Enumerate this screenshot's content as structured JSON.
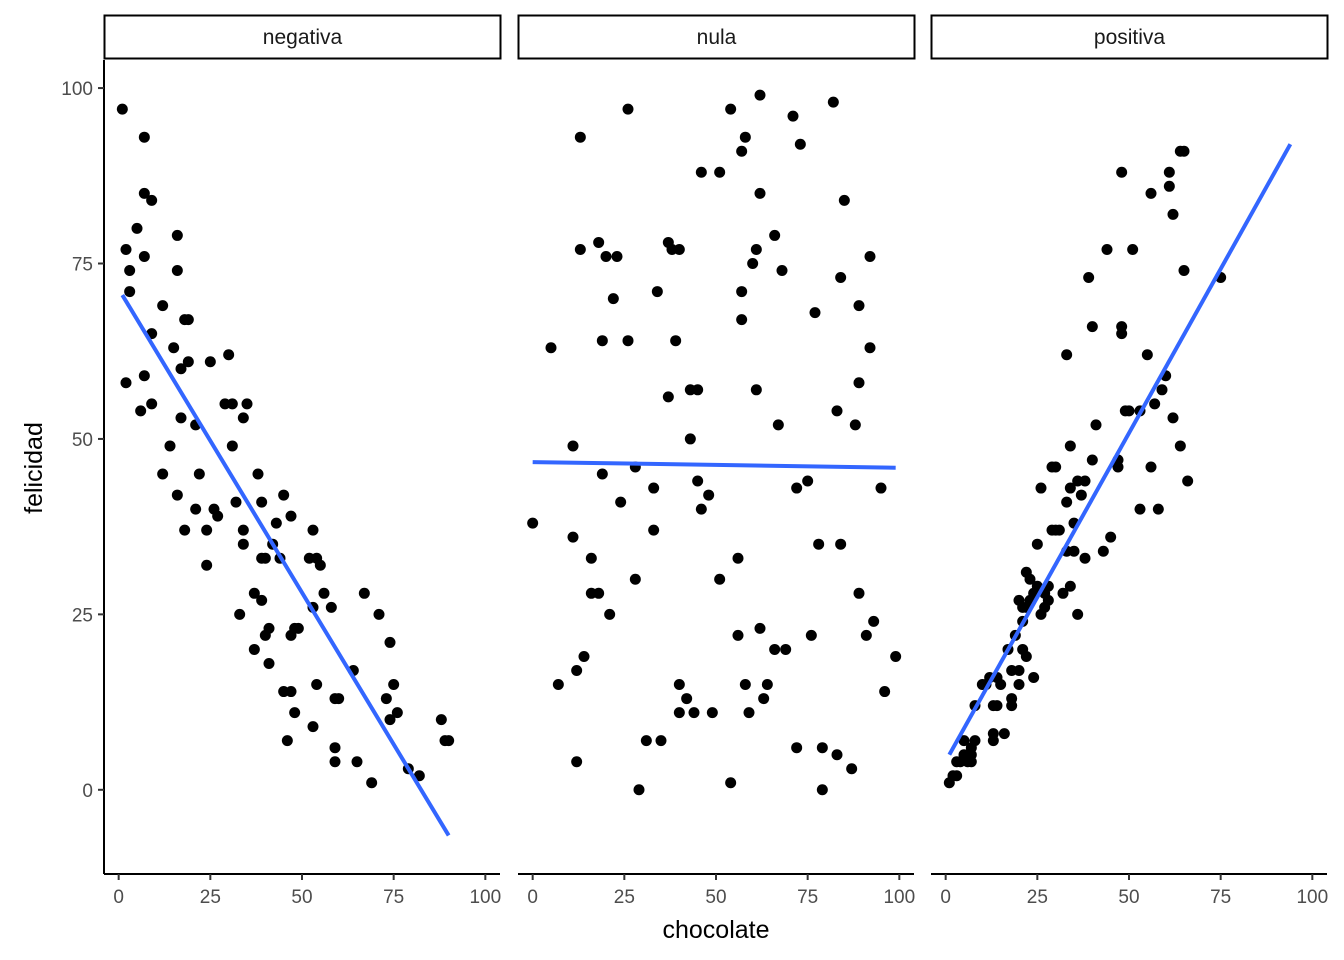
{
  "chart_data": {
    "type": "scatter",
    "xlabel": "chocolate",
    "ylabel": "felicidad",
    "xlim": [
      -4,
      104
    ],
    "ylim": [
      -12,
      104
    ],
    "x_ticks": [
      0,
      25,
      50,
      75,
      100
    ],
    "y_ticks": [
      0,
      25,
      50,
      75,
      100
    ],
    "x_tick_labels": [
      "0",
      "25",
      "50",
      "75",
      "100"
    ],
    "y_tick_labels": [
      "0",
      "25",
      "50",
      "75",
      "100"
    ],
    "grid": false,
    "colors": {
      "point": "#000000",
      "fit_line": "#3366ff",
      "axis": "#000000"
    },
    "panels": [
      {
        "label": "negativa",
        "fit": {
          "x": [
            1,
            90
          ],
          "y": [
            70.5,
            -6.5
          ]
        },
        "points": [
          [
            1,
            97
          ],
          [
            2,
            77
          ],
          [
            2,
            58
          ],
          [
            3,
            71
          ],
          [
            3,
            74
          ],
          [
            5,
            80
          ],
          [
            6,
            54
          ],
          [
            7,
            93
          ],
          [
            7,
            85
          ],
          [
            7,
            76
          ],
          [
            7,
            59
          ],
          [
            9,
            84
          ],
          [
            9,
            65
          ],
          [
            9,
            55
          ],
          [
            12,
            69
          ],
          [
            12,
            45
          ],
          [
            14,
            49
          ],
          [
            15,
            63
          ],
          [
            16,
            79
          ],
          [
            16,
            74
          ],
          [
            16,
            42
          ],
          [
            17,
            60
          ],
          [
            17,
            53
          ],
          [
            18,
            67
          ],
          [
            18,
            37
          ],
          [
            19,
            67
          ],
          [
            19,
            61
          ],
          [
            21,
            52
          ],
          [
            21,
            40
          ],
          [
            22,
            45
          ],
          [
            24,
            37
          ],
          [
            24,
            32
          ],
          [
            25,
            61
          ],
          [
            26,
            40
          ],
          [
            27,
            39
          ],
          [
            29,
            55
          ],
          [
            30,
            62
          ],
          [
            31,
            55
          ],
          [
            31,
            49
          ],
          [
            32,
            41
          ],
          [
            33,
            25
          ],
          [
            34,
            53
          ],
          [
            34,
            37
          ],
          [
            34,
            35
          ],
          [
            35,
            55
          ],
          [
            37,
            28
          ],
          [
            37,
            20
          ],
          [
            38,
            45
          ],
          [
            39,
            41
          ],
          [
            39,
            33
          ],
          [
            39,
            27
          ],
          [
            40,
            33
          ],
          [
            40,
            22
          ],
          [
            41,
            23
          ],
          [
            41,
            18
          ],
          [
            42,
            35
          ],
          [
            43,
            38
          ],
          [
            44,
            33
          ],
          [
            45,
            42
          ],
          [
            45,
            14
          ],
          [
            46,
            7
          ],
          [
            47,
            39
          ],
          [
            47,
            22
          ],
          [
            47,
            14
          ],
          [
            48,
            23
          ],
          [
            48,
            11
          ],
          [
            49,
            23
          ],
          [
            52,
            33
          ],
          [
            53,
            37
          ],
          [
            53,
            9
          ],
          [
            53,
            26
          ],
          [
            54,
            15
          ],
          [
            54,
            33
          ],
          [
            55,
            32
          ],
          [
            56,
            28
          ],
          [
            58,
            26
          ],
          [
            59,
            6
          ],
          [
            59,
            4
          ],
          [
            59,
            13
          ],
          [
            60,
            13
          ],
          [
            64,
            17
          ],
          [
            65,
            4
          ],
          [
            67,
            28
          ],
          [
            69,
            1
          ],
          [
            71,
            25
          ],
          [
            73,
            13
          ],
          [
            74,
            21
          ],
          [
            74,
            10
          ],
          [
            75,
            15
          ],
          [
            76,
            11
          ],
          [
            79,
            3
          ],
          [
            82,
            2
          ],
          [
            88,
            10
          ],
          [
            89,
            7
          ],
          [
            90,
            7
          ]
        ]
      },
      {
        "label": "nula",
        "fit": {
          "x": [
            0,
            99
          ],
          "y": [
            46.7,
            45.9
          ]
        },
        "points": [
          [
            0,
            38
          ],
          [
            5,
            63
          ],
          [
            7,
            15
          ],
          [
            11,
            49
          ],
          [
            11,
            36
          ],
          [
            12,
            17
          ],
          [
            12,
            4
          ],
          [
            13,
            93
          ],
          [
            13,
            77
          ],
          [
            14,
            19
          ],
          [
            16,
            33
          ],
          [
            16,
            28
          ],
          [
            18,
            78
          ],
          [
            18,
            28
          ],
          [
            19,
            64
          ],
          [
            19,
            45
          ],
          [
            20,
            76
          ],
          [
            21,
            25
          ],
          [
            22,
            70
          ],
          [
            23,
            76
          ],
          [
            24,
            41
          ],
          [
            26,
            97
          ],
          [
            26,
            64
          ],
          [
            28,
            46
          ],
          [
            28,
            30
          ],
          [
            29,
            0
          ],
          [
            31,
            7
          ],
          [
            33,
            43
          ],
          [
            33,
            37
          ],
          [
            34,
            71
          ],
          [
            35,
            7
          ],
          [
            37,
            78
          ],
          [
            37,
            56
          ],
          [
            38,
            77
          ],
          [
            39,
            64
          ],
          [
            40,
            77
          ],
          [
            40,
            15
          ],
          [
            40,
            11
          ],
          [
            42,
            13
          ],
          [
            43,
            57
          ],
          [
            43,
            50
          ],
          [
            44,
            11
          ],
          [
            45,
            57
          ],
          [
            45,
            44
          ],
          [
            46,
            88
          ],
          [
            46,
            40
          ],
          [
            48,
            42
          ],
          [
            49,
            11
          ],
          [
            51,
            88
          ],
          [
            51,
            30
          ],
          [
            54,
            97
          ],
          [
            54,
            1
          ],
          [
            56,
            22
          ],
          [
            56,
            33
          ],
          [
            57,
            91
          ],
          [
            57,
            71
          ],
          [
            57,
            67
          ],
          [
            58,
            93
          ],
          [
            58,
            15
          ],
          [
            59,
            11
          ],
          [
            60,
            75
          ],
          [
            61,
            77
          ],
          [
            61,
            57
          ],
          [
            62,
            99
          ],
          [
            62,
            85
          ],
          [
            62,
            23
          ],
          [
            63,
            13
          ],
          [
            64,
            15
          ],
          [
            66,
            79
          ],
          [
            66,
            20
          ],
          [
            67,
            52
          ],
          [
            68,
            74
          ],
          [
            69,
            20
          ],
          [
            71,
            96
          ],
          [
            72,
            6
          ],
          [
            72,
            43
          ],
          [
            73,
            92
          ],
          [
            75,
            44
          ],
          [
            76,
            22
          ],
          [
            77,
            68
          ],
          [
            78,
            35
          ],
          [
            79,
            6
          ],
          [
            79,
            0
          ],
          [
            82,
            98
          ],
          [
            83,
            54
          ],
          [
            83,
            5
          ],
          [
            84,
            73
          ],
          [
            84,
            35
          ],
          [
            85,
            84
          ],
          [
            87,
            3
          ],
          [
            88,
            52
          ],
          [
            89,
            69
          ],
          [
            89,
            58
          ],
          [
            89,
            28
          ],
          [
            91,
            22
          ],
          [
            92,
            76
          ],
          [
            92,
            63
          ],
          [
            93,
            24
          ],
          [
            95,
            43
          ],
          [
            96,
            14
          ],
          [
            99,
            19
          ]
        ]
      },
      {
        "label": "positiva",
        "fit": {
          "x": [
            1,
            94
          ],
          "y": [
            5,
            92
          ]
        },
        "points": [
          [
            1,
            1
          ],
          [
            2,
            2
          ],
          [
            3,
            2
          ],
          [
            3,
            4
          ],
          [
            4,
            4
          ],
          [
            5,
            7
          ],
          [
            5,
            5
          ],
          [
            6,
            5
          ],
          [
            6,
            4
          ],
          [
            7,
            6
          ],
          [
            7,
            5
          ],
          [
            7,
            4
          ],
          [
            8,
            12
          ],
          [
            8,
            7
          ],
          [
            10,
            15
          ],
          [
            11,
            15
          ],
          [
            12,
            16
          ],
          [
            13,
            12
          ],
          [
            13,
            8
          ],
          [
            13,
            7
          ],
          [
            14,
            16
          ],
          [
            14,
            12
          ],
          [
            15,
            15
          ],
          [
            16,
            8
          ],
          [
            17,
            20
          ],
          [
            18,
            17
          ],
          [
            18,
            13
          ],
          [
            18,
            12
          ],
          [
            19,
            22
          ],
          [
            20,
            27
          ],
          [
            20,
            17
          ],
          [
            20,
            15
          ],
          [
            21,
            26
          ],
          [
            21,
            24
          ],
          [
            21,
            20
          ],
          [
            22,
            31
          ],
          [
            22,
            26
          ],
          [
            22,
            19
          ],
          [
            23,
            27
          ],
          [
            23,
            30
          ],
          [
            24,
            28
          ],
          [
            24,
            16
          ],
          [
            25,
            35
          ],
          [
            25,
            29
          ],
          [
            26,
            43
          ],
          [
            26,
            25
          ],
          [
            27,
            28
          ],
          [
            27,
            26
          ],
          [
            28,
            29
          ],
          [
            28,
            27
          ],
          [
            29,
            46
          ],
          [
            29,
            37
          ],
          [
            30,
            46
          ],
          [
            30,
            37
          ],
          [
            31,
            37
          ],
          [
            32,
            28
          ],
          [
            33,
            62
          ],
          [
            33,
            41
          ],
          [
            33,
            34
          ],
          [
            34,
            49
          ],
          [
            34,
            29
          ],
          [
            34,
            43
          ],
          [
            35,
            34
          ],
          [
            35,
            38
          ],
          [
            36,
            44
          ],
          [
            36,
            25
          ],
          [
            37,
            42
          ],
          [
            38,
            44
          ],
          [
            38,
            33
          ],
          [
            39,
            73
          ],
          [
            40,
            66
          ],
          [
            40,
            47
          ],
          [
            41,
            52
          ],
          [
            43,
            34
          ],
          [
            44,
            77
          ],
          [
            45,
            36
          ],
          [
            47,
            47
          ],
          [
            47,
            46
          ],
          [
            48,
            88
          ],
          [
            48,
            66
          ],
          [
            48,
            65
          ],
          [
            49,
            54
          ],
          [
            50,
            54
          ],
          [
            51,
            77
          ],
          [
            53,
            40
          ],
          [
            53,
            54
          ],
          [
            55,
            62
          ],
          [
            56,
            85
          ],
          [
            56,
            46
          ],
          [
            57,
            55
          ],
          [
            58,
            40
          ],
          [
            59,
            57
          ],
          [
            60,
            59
          ],
          [
            61,
            86
          ],
          [
            61,
            88
          ],
          [
            62,
            82
          ],
          [
            62,
            53
          ],
          [
            64,
            91
          ],
          [
            64,
            49
          ],
          [
            65,
            91
          ],
          [
            65,
            74
          ],
          [
            66,
            44
          ],
          [
            75,
            73
          ]
        ]
      }
    ]
  }
}
